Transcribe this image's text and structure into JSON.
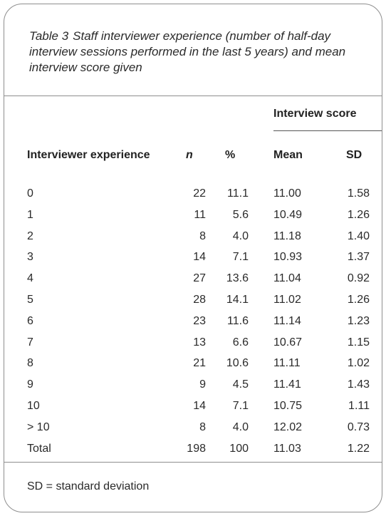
{
  "caption": {
    "label": "Table 3",
    "text": "Staff interviewer experience (number of half-day interview sessions performed in the last 5 years) and mean interview score given"
  },
  "group_header": "Interview score",
  "columns": {
    "experience": "Interviewer experience",
    "n": "n",
    "pct": "%",
    "mean": "Mean",
    "sd": "SD"
  },
  "rows": [
    {
      "exp": "0",
      "n": "22",
      "pct": "11.1",
      "mean": "11.00",
      "sd": "1.58"
    },
    {
      "exp": "1",
      "n": "11",
      "pct": "5.6",
      "mean": "10.49",
      "sd": "1.26"
    },
    {
      "exp": "2",
      "n": "8",
      "pct": "4.0",
      "mean": "11.18",
      "sd": "1.40"
    },
    {
      "exp": "3",
      "n": "14",
      "pct": "7.1",
      "mean": "10.93",
      "sd": "1.37"
    },
    {
      "exp": "4",
      "n": "27",
      "pct": "13.6",
      "mean": "11.04",
      "sd": "0.92"
    },
    {
      "exp": "5",
      "n": "28",
      "pct": "14.1",
      "mean": "11.02",
      "sd": "1.26"
    },
    {
      "exp": "6",
      "n": "23",
      "pct": "11.6",
      "mean": "11.14",
      "sd": "1.23"
    },
    {
      "exp": "7",
      "n": "13",
      "pct": "6.6",
      "mean": "10.67",
      "sd": "1.15"
    },
    {
      "exp": "8",
      "n": "21",
      "pct": "10.6",
      "mean": "11.11",
      "sd": "1.02"
    },
    {
      "exp": "9",
      "n": "9",
      "pct": "4.5",
      "mean": "11.41",
      "sd": "1.43"
    },
    {
      "exp": "10",
      "n": "14",
      "pct": "7.1",
      "mean": "10.75",
      "sd": "1.11"
    },
    {
      "exp": "> 10",
      "n": "8",
      "pct": "4.0",
      "mean": "12.02",
      "sd": "0.73"
    },
    {
      "exp": "Total",
      "n": "198",
      "pct": "100",
      "mean": "11.03",
      "sd": "1.22"
    }
  ],
  "footnote": "SD = standard deviation"
}
